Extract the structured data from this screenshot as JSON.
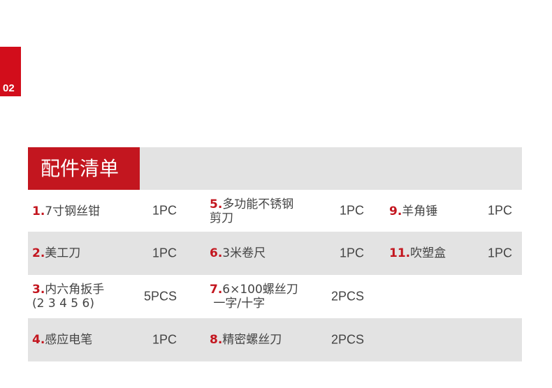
{
  "section_number": "02",
  "title": "配件清单",
  "accent_color": "#c3161f",
  "rows": [
    {
      "items": [
        {
          "num": "1.",
          "name": "7寸钢丝钳",
          "qty": "1PC"
        },
        {
          "num": "5.",
          "name": "多功能不锈钢\n剪刀",
          "qty": "1PC"
        },
        {
          "num": "9.",
          "name": "羊角锤",
          "qty": "1PC"
        }
      ]
    },
    {
      "items": [
        {
          "num": "2.",
          "name": "美工刀",
          "qty": "1PC"
        },
        {
          "num": "6.",
          "name": "3米卷尺",
          "qty": "1PC"
        },
        {
          "num": "11.",
          "name": "吹塑盒",
          "qty": "1PC"
        }
      ]
    },
    {
      "items": [
        {
          "num": "3.",
          "name": "内六角扳手\n(2 3 4 5 6)",
          "qty": "5PCS"
        },
        {
          "num": "7.",
          "name": "6×100螺丝刀\n 一字/十字",
          "qty": "2PCS"
        }
      ]
    },
    {
      "items": [
        {
          "num": "4.",
          "name": "感应电笔",
          "qty": "1PC"
        },
        {
          "num": "8.",
          "name": "精密螺丝刀",
          "qty": "2PCS"
        }
      ]
    }
  ]
}
